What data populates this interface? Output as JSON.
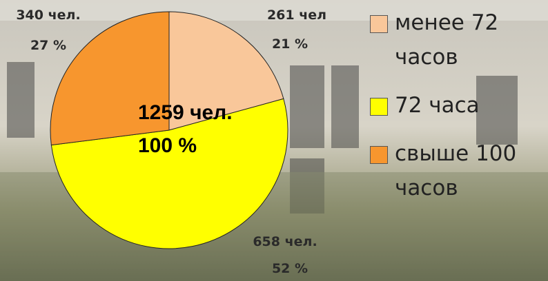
{
  "chart_data": {
    "type": "pie",
    "categories": [
      "менее 72 часов",
      "72 часа",
      "свыше 100 часов"
    ],
    "values": [
      261,
      658,
      340
    ],
    "value_labels": [
      "261 чел",
      "658 чел.",
      "340 чел."
    ],
    "percents": [
      21,
      52,
      27
    ],
    "percent_labels": [
      "21 %",
      "52 %",
      "27 %"
    ],
    "colors": [
      "#f9c79a",
      "#ffff00",
      "#f7962e"
    ],
    "annotations": [
      "1259 чел.",
      "100 %"
    ]
  }
}
